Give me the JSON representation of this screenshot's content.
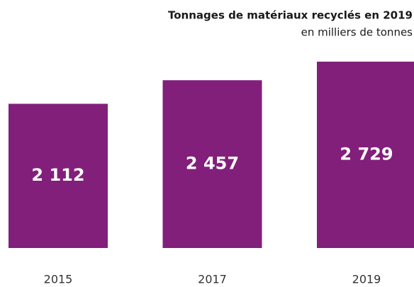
{
  "chart_data": {
    "type": "bar",
    "title": "Tonnages de matériaux recyclés en 2019",
    "subtitle": "en milliers de tonnes",
    "categories": [
      "2015",
      "2017",
      "2019"
    ],
    "values": [
      2112,
      2457,
      2729
    ],
    "value_labels": [
      "2 112",
      "2 457",
      "2 729"
    ],
    "color": "#821f7b"
  }
}
